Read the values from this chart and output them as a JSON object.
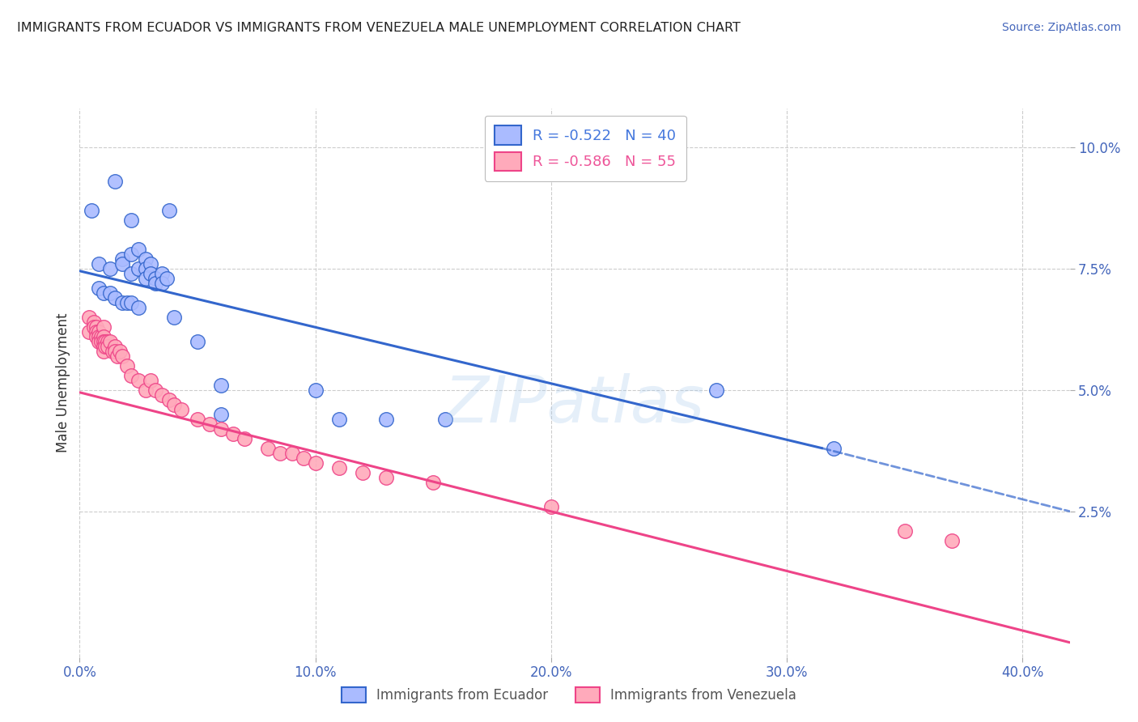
{
  "title": "IMMIGRANTS FROM ECUADOR VS IMMIGRANTS FROM VENEZUELA MALE UNEMPLOYMENT CORRELATION CHART",
  "source": "Source: ZipAtlas.com",
  "ylabel": "Male Unemployment",
  "watermark": "ZIPatlas",
  "x_ticks": [
    0.0,
    0.1,
    0.2,
    0.3,
    0.4
  ],
  "x_tick_labels": [
    "0.0%",
    "10.0%",
    "20.0%",
    "30.0%",
    "40.0%"
  ],
  "y_ticks": [
    0.025,
    0.05,
    0.075,
    0.1
  ],
  "y_tick_labels": [
    "2.5%",
    "5.0%",
    "7.5%",
    "10.0%"
  ],
  "xlim": [
    0.0,
    0.42
  ],
  "ylim": [
    -0.005,
    0.108
  ],
  "legend_entries": [
    {
      "label": "R = -0.522   N = 40",
      "color": "#4477dd"
    },
    {
      "label": "R = -0.586   N = 55",
      "color": "#ee5599"
    }
  ],
  "ecuador_scatter": [
    [
      0.005,
      0.087
    ],
    [
      0.015,
      0.093
    ],
    [
      0.022,
      0.085
    ],
    [
      0.038,
      0.087
    ],
    [
      0.008,
      0.076
    ],
    [
      0.013,
      0.075
    ],
    [
      0.018,
      0.077
    ],
    [
      0.018,
      0.076
    ],
    [
      0.022,
      0.078
    ],
    [
      0.022,
      0.074
    ],
    [
      0.025,
      0.079
    ],
    [
      0.025,
      0.075
    ],
    [
      0.028,
      0.077
    ],
    [
      0.028,
      0.075
    ],
    [
      0.028,
      0.073
    ],
    [
      0.03,
      0.076
    ],
    [
      0.03,
      0.074
    ],
    [
      0.032,
      0.073
    ],
    [
      0.032,
      0.072
    ],
    [
      0.035,
      0.074
    ],
    [
      0.035,
      0.072
    ],
    [
      0.037,
      0.073
    ],
    [
      0.008,
      0.071
    ],
    [
      0.01,
      0.07
    ],
    [
      0.013,
      0.07
    ],
    [
      0.015,
      0.069
    ],
    [
      0.018,
      0.068
    ],
    [
      0.02,
      0.068
    ],
    [
      0.022,
      0.068
    ],
    [
      0.025,
      0.067
    ],
    [
      0.04,
      0.065
    ],
    [
      0.05,
      0.06
    ],
    [
      0.06,
      0.051
    ],
    [
      0.06,
      0.045
    ],
    [
      0.1,
      0.05
    ],
    [
      0.11,
      0.044
    ],
    [
      0.13,
      0.044
    ],
    [
      0.155,
      0.044
    ],
    [
      0.27,
      0.05
    ],
    [
      0.32,
      0.038
    ]
  ],
  "venezuela_scatter": [
    [
      0.004,
      0.065
    ],
    [
      0.004,
      0.062
    ],
    [
      0.006,
      0.064
    ],
    [
      0.006,
      0.063
    ],
    [
      0.007,
      0.063
    ],
    [
      0.007,
      0.062
    ],
    [
      0.007,
      0.061
    ],
    [
      0.008,
      0.062
    ],
    [
      0.008,
      0.061
    ],
    [
      0.008,
      0.06
    ],
    [
      0.009,
      0.061
    ],
    [
      0.009,
      0.06
    ],
    [
      0.01,
      0.063
    ],
    [
      0.01,
      0.061
    ],
    [
      0.01,
      0.06
    ],
    [
      0.01,
      0.059
    ],
    [
      0.01,
      0.058
    ],
    [
      0.011,
      0.06
    ],
    [
      0.011,
      0.059
    ],
    [
      0.012,
      0.06
    ],
    [
      0.012,
      0.059
    ],
    [
      0.013,
      0.06
    ],
    [
      0.014,
      0.058
    ],
    [
      0.015,
      0.059
    ],
    [
      0.015,
      0.058
    ],
    [
      0.016,
      0.057
    ],
    [
      0.017,
      0.058
    ],
    [
      0.018,
      0.057
    ],
    [
      0.02,
      0.055
    ],
    [
      0.022,
      0.053
    ],
    [
      0.025,
      0.052
    ],
    [
      0.028,
      0.05
    ],
    [
      0.03,
      0.052
    ],
    [
      0.032,
      0.05
    ],
    [
      0.035,
      0.049
    ],
    [
      0.038,
      0.048
    ],
    [
      0.04,
      0.047
    ],
    [
      0.043,
      0.046
    ],
    [
      0.05,
      0.044
    ],
    [
      0.055,
      0.043
    ],
    [
      0.06,
      0.042
    ],
    [
      0.065,
      0.041
    ],
    [
      0.07,
      0.04
    ],
    [
      0.08,
      0.038
    ],
    [
      0.085,
      0.037
    ],
    [
      0.09,
      0.037
    ],
    [
      0.095,
      0.036
    ],
    [
      0.1,
      0.035
    ],
    [
      0.11,
      0.034
    ],
    [
      0.12,
      0.033
    ],
    [
      0.13,
      0.032
    ],
    [
      0.15,
      0.031
    ],
    [
      0.2,
      0.026
    ],
    [
      0.35,
      0.021
    ],
    [
      0.37,
      0.019
    ]
  ],
  "ecuador_line_solid": {
    "x0": 0.0,
    "y0": 0.0745,
    "x1": 0.315,
    "y1": 0.038
  },
  "ecuador_line_dashed": {
    "x0": 0.315,
    "y0": 0.038,
    "x1": 0.42,
    "y1": 0.025
  },
  "venezuela_line_solid": {
    "x0": 0.0,
    "y0": 0.0495,
    "x1": 0.42,
    "y1": -0.002
  },
  "ecuador_color": "#3366cc",
  "venezuela_color": "#ee4488",
  "ecuador_scatter_color": "#aabbff",
  "venezuela_scatter_color": "#ffaabb",
  "bg_color": "#ffffff",
  "grid_color": "#cccccc",
  "tick_label_color": "#4466bb",
  "title_color": "#222222",
  "ylabel_color": "#333333"
}
